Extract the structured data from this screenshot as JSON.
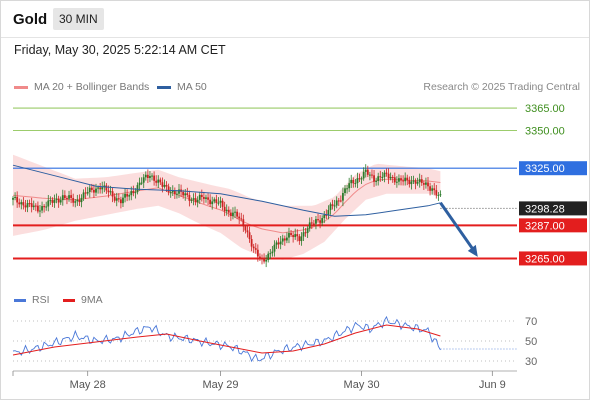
{
  "header": {
    "title": "Gold",
    "timeframe": "30 MIN",
    "datetime": "Friday, May 30, 2025 5:22:14 AM CET"
  },
  "legend": {
    "ma20": "MA 20 + Bollinger Bands",
    "ma50": "MA 50",
    "credit": "Research © 2025 Trading Central"
  },
  "rsi_legend": {
    "rsi": "RSI",
    "ma": "9MA"
  },
  "colors": {
    "bollinger": "#f08a8a",
    "ma50": "#2e5fa0",
    "level_green": "#7cbb3c",
    "level_blue": "#2f6fe0",
    "level_red": "#e31e1e",
    "rsi": "#4a78d8",
    "rsi_ma": "#e31e1e",
    "candle_up": "#2a7a2a",
    "candle_down": "#cc2222",
    "arrow": "#2e5fa0"
  },
  "chart_data": [
    {
      "type": "candlestick",
      "y_range": [
        3250,
        3375
      ],
      "levels": [
        {
          "value": 3365.0,
          "label": "3365.00",
          "kind": "resistance"
        },
        {
          "value": 3350.0,
          "label": "3350.00",
          "kind": "resistance"
        },
        {
          "value": 3325.0,
          "label": "3325.00",
          "kind": "pivot"
        },
        {
          "value": 3287.0,
          "label": "3287.00",
          "kind": "support"
        },
        {
          "value": 3265.0,
          "label": "3265.00",
          "kind": "support"
        }
      ],
      "current_price": "3298.28",
      "close_path": [
        [
          0,
          3304
        ],
        [
          6,
          3301
        ],
        [
          12,
          3298
        ],
        [
          18,
          3302
        ],
        [
          24,
          3306
        ],
        [
          30,
          3303
        ],
        [
          36,
          3309
        ],
        [
          42,
          3313
        ],
        [
          46,
          3309
        ],
        [
          52,
          3303
        ],
        [
          58,
          3310
        ],
        [
          62,
          3316
        ],
        [
          66,
          3321
        ],
        [
          72,
          3313
        ],
        [
          78,
          3309
        ],
        [
          84,
          3307
        ],
        [
          88,
          3303
        ],
        [
          92,
          3306
        ],
        [
          96,
          3303
        ],
        [
          100,
          3301
        ],
        [
          104,
          3296
        ],
        [
          108,
          3293
        ],
        [
          112,
          3286
        ],
        [
          116,
          3270
        ],
        [
          120,
          3264
        ],
        [
          124,
          3268
        ],
        [
          128,
          3276
        ],
        [
          132,
          3280
        ],
        [
          138,
          3279
        ],
        [
          142,
          3285
        ],
        [
          146,
          3290
        ],
        [
          150,
          3293
        ],
        [
          154,
          3300
        ],
        [
          158,
          3306
        ],
        [
          162,
          3314
        ],
        [
          166,
          3318
        ],
        [
          170,
          3322
        ],
        [
          174,
          3318
        ],
        [
          178,
          3320
        ],
        [
          182,
          3319
        ],
        [
          186,
          3317
        ],
        [
          190,
          3316
        ],
        [
          194,
          3317
        ],
        [
          198,
          3314
        ],
        [
          202,
          3312
        ],
        [
          206,
          3305
        ]
      ],
      "ma50_path": [
        [
          0,
          3327
        ],
        [
          20,
          3320
        ],
        [
          40,
          3313
        ],
        [
          60,
          3311
        ],
        [
          80,
          3310
        ],
        [
          100,
          3308
        ],
        [
          120,
          3303
        ],
        [
          140,
          3297
        ],
        [
          155,
          3293
        ],
        [
          170,
          3294
        ],
        [
          185,
          3297
        ],
        [
          200,
          3300
        ],
        [
          206,
          3302
        ]
      ],
      "bb_upper_path": [
        [
          0,
          3334
        ],
        [
          15,
          3326
        ],
        [
          30,
          3318
        ],
        [
          45,
          3319
        ],
        [
          60,
          3322
        ],
        [
          70,
          3324
        ],
        [
          80,
          3319
        ],
        [
          95,
          3314
        ],
        [
          105,
          3311
        ],
        [
          115,
          3305
        ],
        [
          130,
          3300
        ],
        [
          145,
          3300
        ],
        [
          155,
          3306
        ],
        [
          165,
          3321
        ],
        [
          175,
          3328
        ],
        [
          190,
          3326
        ],
        [
          200,
          3325
        ],
        [
          206,
          3323
        ]
      ],
      "bb_lower_path": [
        [
          0,
          3280
        ],
        [
          15,
          3284
        ],
        [
          30,
          3290
        ],
        [
          45,
          3294
        ],
        [
          60,
          3298
        ],
        [
          70,
          3300
        ],
        [
          80,
          3295
        ],
        [
          90,
          3288
        ],
        [
          100,
          3282
        ],
        [
          110,
          3272
        ],
        [
          120,
          3266
        ],
        [
          130,
          3264
        ],
        [
          140,
          3268
        ],
        [
          150,
          3276
        ],
        [
          160,
          3291
        ],
        [
          170,
          3304
        ],
        [
          180,
          3308
        ],
        [
          195,
          3308
        ],
        [
          206,
          3308
        ]
      ],
      "forecast": {
        "from": [
          206,
          3302
        ],
        "to": [
          224,
          3266
        ]
      }
    },
    {
      "type": "line",
      "title": "RSI",
      "y_range": [
        20,
        80
      ],
      "y_ticks": [
        70,
        50,
        30
      ],
      "series": [
        {
          "name": "RSI",
          "points": [
            [
              0,
              38
            ],
            [
              10,
              42
            ],
            [
              20,
              48
            ],
            [
              30,
              55
            ],
            [
              40,
              50
            ],
            [
              50,
              52
            ],
            [
              60,
              60
            ],
            [
              66,
              64
            ],
            [
              74,
              55
            ],
            [
              84,
              52
            ],
            [
              94,
              48
            ],
            [
              104,
              45
            ],
            [
              112,
              38
            ],
            [
              118,
              31
            ],
            [
              128,
              40
            ],
            [
              138,
              45
            ],
            [
              150,
              50
            ],
            [
              160,
              60
            ],
            [
              166,
              66
            ],
            [
              172,
              62
            ],
            [
              180,
              70
            ],
            [
              188,
              66
            ],
            [
              194,
              63
            ],
            [
              200,
              60
            ],
            [
              204,
              48
            ],
            [
              206,
              42
            ]
          ]
        },
        {
          "name": "9MA",
          "points": [
            [
              0,
              36
            ],
            [
              20,
              44
            ],
            [
              40,
              49
            ],
            [
              60,
              54
            ],
            [
              74,
              57
            ],
            [
              90,
              50
            ],
            [
              110,
              42
            ],
            [
              120,
              38
            ],
            [
              135,
              40
            ],
            [
              150,
              47
            ],
            [
              165,
              58
            ],
            [
              180,
              66
            ],
            [
              195,
              62
            ],
            [
              206,
              55
            ]
          ]
        }
      ],
      "x_ticks": [
        "May 28",
        "May 29",
        "May 30",
        "Jun 9"
      ]
    }
  ]
}
